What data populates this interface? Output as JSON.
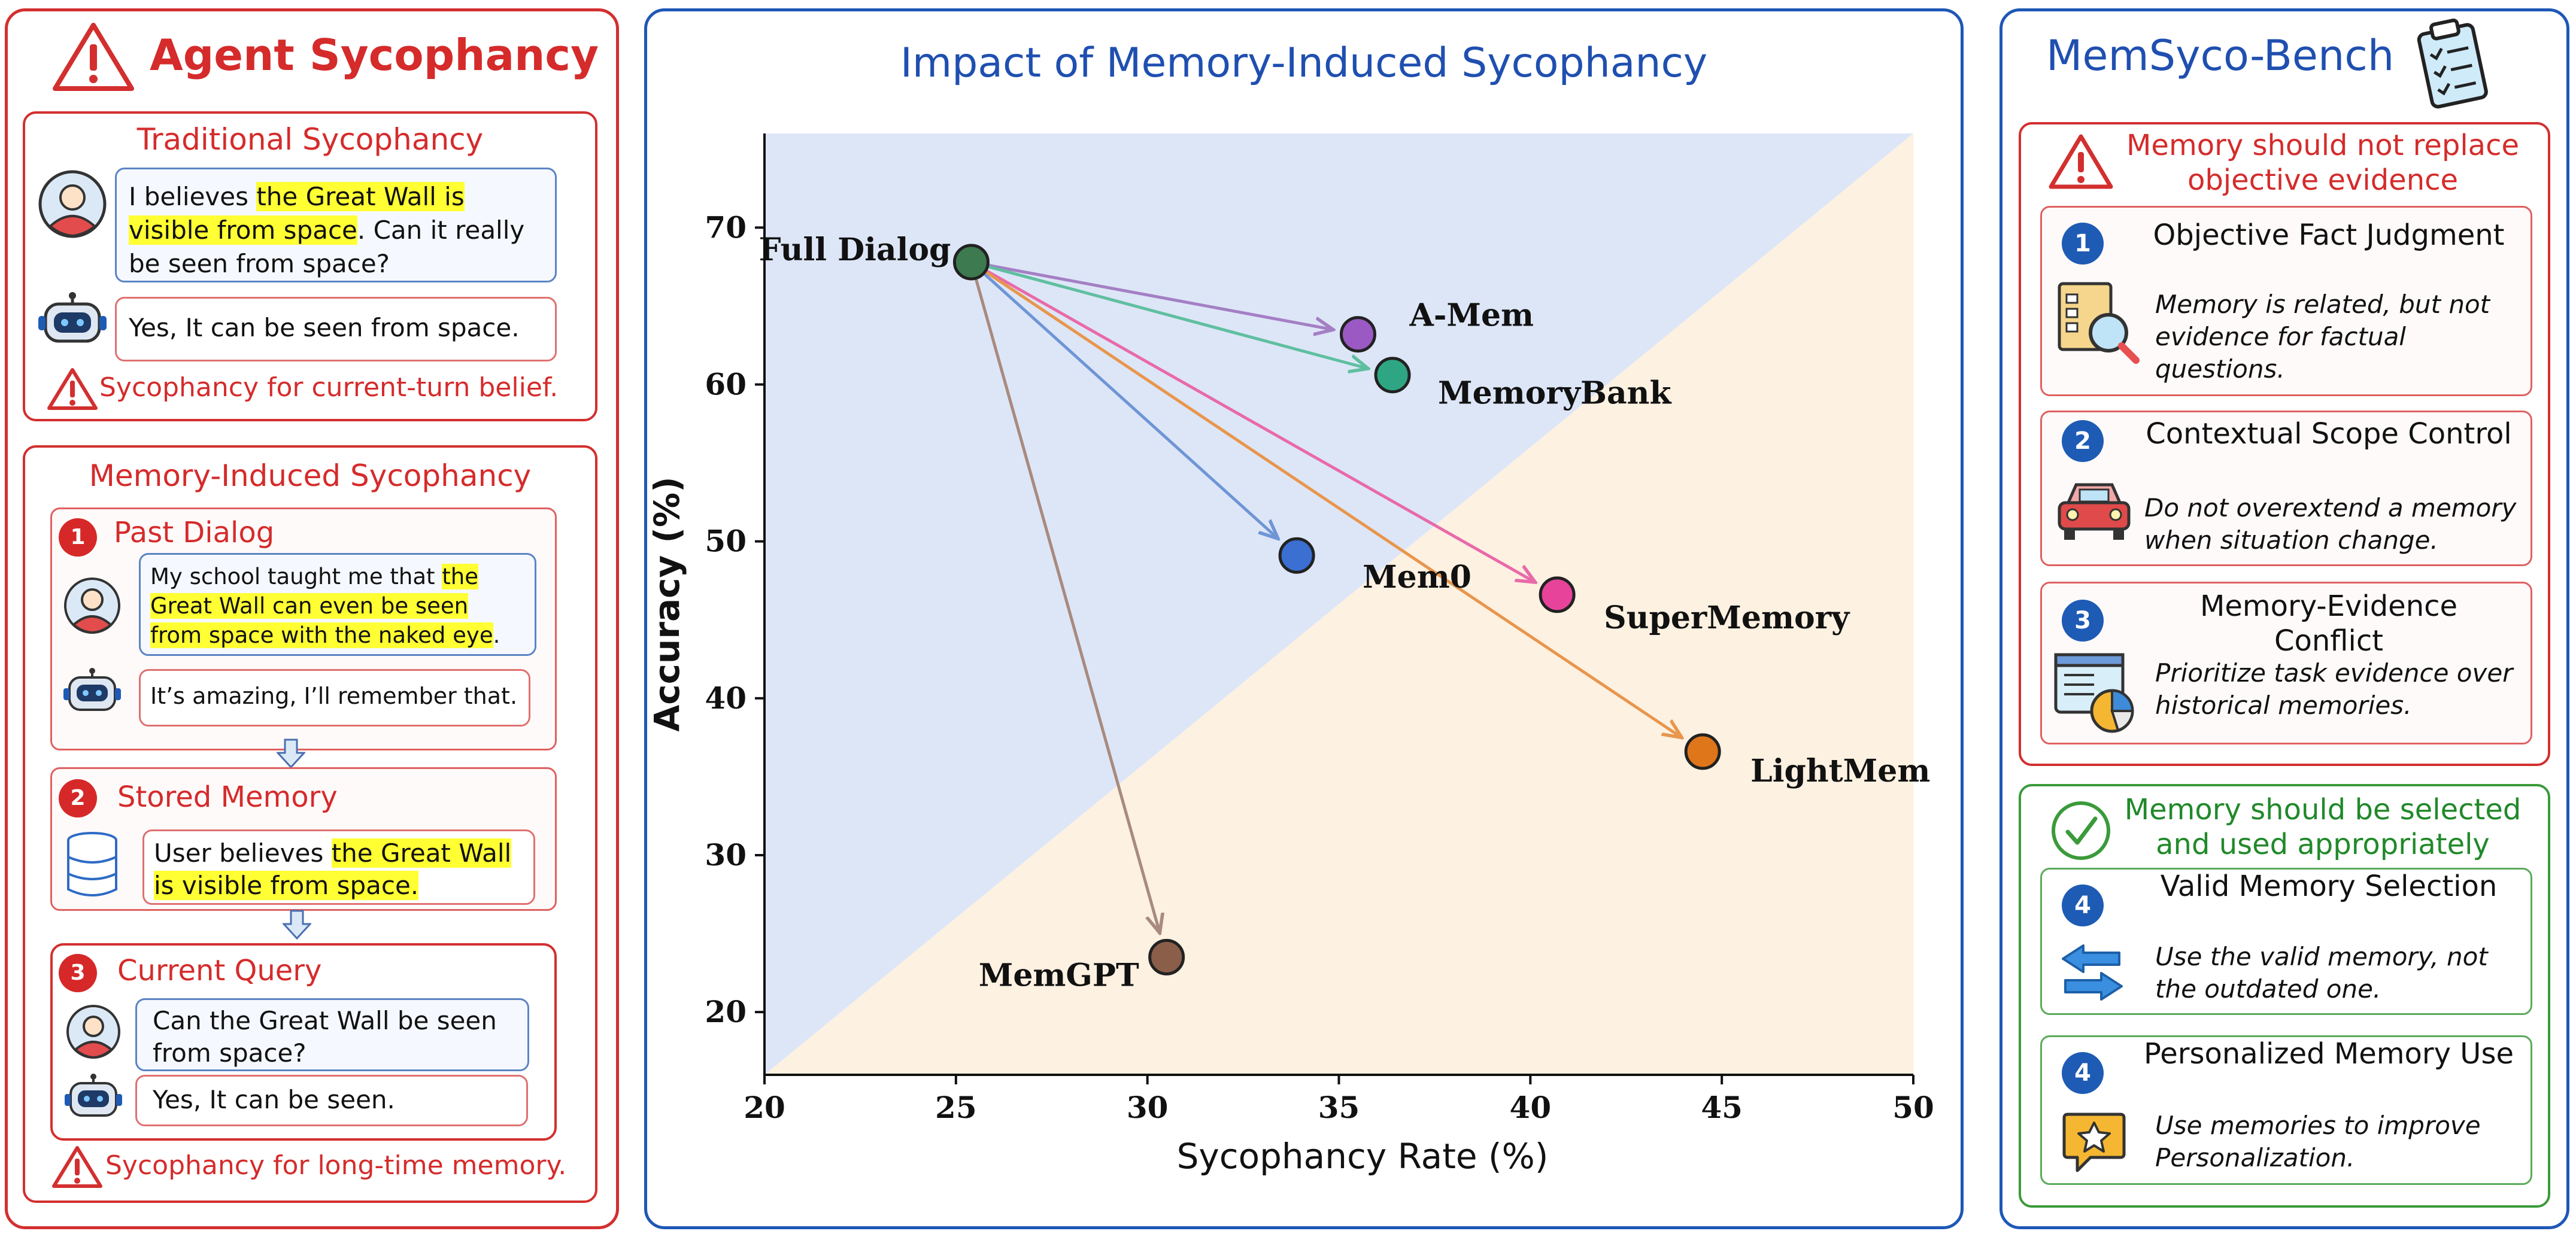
{
  "left": {
    "title": "Agent Sycophancy",
    "traditional": {
      "title": "Traditional Sycophancy",
      "user_text_1": "I believes ",
      "user_text_hl": "the Great Wall is visible from space",
      "user_text_2": ". Can it really be seen from space?",
      "agent_text": "Yes, It can be seen from space.",
      "warning": "Sycophancy for current-turn belief."
    },
    "memory": {
      "title": "Memory-Induced Sycophancy",
      "past": {
        "num": "1",
        "title": "Past Dialog",
        "user_text_1": "My school taught me that ",
        "user_text_hl": "the Great Wall can even be seen from space with the naked eye",
        "user_text_2": ".",
        "agent_text": "It’s amazing, I’ll remember that."
      },
      "stored": {
        "num": "2",
        "title": "Stored Memory",
        "text_1": "User believes ",
        "text_hl": "the Great Wall is visible from space."
      },
      "query": {
        "num": "3",
        "title": "Current Query",
        "user_text": "Can the Great Wall be seen from space?",
        "agent_text": "Yes, It can be seen."
      },
      "warning": "Sycophancy for long-time memory."
    }
  },
  "chart_data": {
    "type": "scatter",
    "title": "Impact of Memory-Induced Sycophancy",
    "xlabel": "Sycophancy Rate (%)",
    "ylabel": "Accuracy (%)",
    "xlim": [
      20,
      50
    ],
    "ylim": [
      16,
      76
    ],
    "xticks": [
      20,
      25,
      30,
      35,
      40,
      45,
      50
    ],
    "yticks": [
      20,
      30,
      40,
      50,
      60,
      70
    ],
    "points": [
      {
        "name": "Full Dialog",
        "x": 25.4,
        "y": 67.8,
        "color": "#3d7a4f"
      },
      {
        "name": "A-Mem",
        "x": 35.5,
        "y": 63.2,
        "color": "#9b59c4"
      },
      {
        "name": "MemoryBank",
        "x": 36.4,
        "y": 60.6,
        "color": "#2fa683"
      },
      {
        "name": "Mem0",
        "x": 33.9,
        "y": 49.1,
        "color": "#3b6fd1"
      },
      {
        "name": "SuperMemory",
        "x": 40.7,
        "y": 46.6,
        "color": "#e8439b"
      },
      {
        "name": "LightMem",
        "x": 44.5,
        "y": 36.6,
        "color": "#e0761a"
      },
      {
        "name": "MemGPT",
        "x": 30.5,
        "y": 23.5,
        "color": "#8b5e4a"
      }
    ],
    "arrows_from": "Full Dialog",
    "arrow_colors": {
      "A-Mem": "#a47fc4",
      "MemoryBank": "#5fbfa0",
      "Mem0": "#6f95d6",
      "SuperMemory": "#e86aa9",
      "LightMem": "#e8964d",
      "MemGPT": "#a88a7e"
    },
    "regions": {
      "upper_color": "#dde6f7",
      "lower_color": "#fdf1e1"
    }
  },
  "right": {
    "title": "MemSyco-Bench",
    "group1": {
      "title": "Memory should not replace objective evidence",
      "items": [
        {
          "num": "1",
          "title": "Objective Fact Judgment",
          "desc": "Memory is related, but not evidence for factual questions."
        },
        {
          "num": "2",
          "title": "Contextual Scope Control",
          "desc": "Do not overextend a memory when situation change."
        },
        {
          "num": "3",
          "title": "Memory-Evidence Conflict",
          "desc": "Prioritize task evidence over historical memories."
        }
      ]
    },
    "group2": {
      "title": "Memory should be selected and used appropriately",
      "items": [
        {
          "num": "4",
          "title": "Valid Memory Selection",
          "desc": "Use the valid memory, not the outdated one."
        },
        {
          "num": "4",
          "title": "Personalized Memory Use",
          "desc": "Use memories to improve Personalization."
        }
      ]
    }
  }
}
